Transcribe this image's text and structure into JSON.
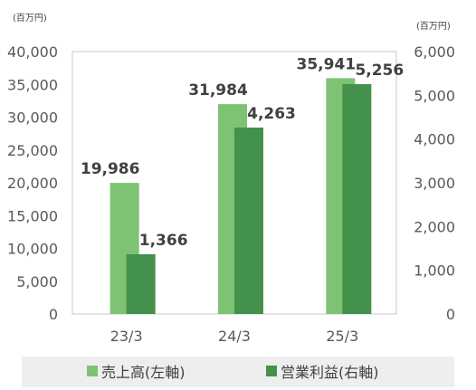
{
  "chart_data": {
    "type": "bar",
    "units": {
      "left": "(百万円)",
      "right": "(百万円)"
    },
    "categories": [
      "23/3",
      "24/3",
      "25/3"
    ],
    "left_axis": {
      "ticks": [
        "0",
        "5,000",
        "10,000",
        "15,000",
        "20,000",
        "25,000",
        "30,000",
        "35,000",
        "40,000"
      ],
      "ylim": [
        0,
        40000
      ]
    },
    "right_axis": {
      "ticks": [
        "0",
        "1,000",
        "2,000",
        "3,000",
        "4,000",
        "5,000",
        "6,000"
      ],
      "ylim": [
        0,
        6000
      ]
    },
    "series": [
      {
        "name": "売上高(左軸)",
        "axis": "left",
        "color": "#7DC373",
        "values": [
          19986,
          31984,
          35941
        ],
        "labels": [
          "19,986",
          "31,984",
          "35,941"
        ]
      },
      {
        "name": "営業利益(右軸)",
        "axis": "right",
        "color": "#43914A",
        "values": [
          1366,
          4263,
          5256
        ],
        "labels": [
          "1,366",
          "4,263",
          "5,256"
        ]
      }
    ],
    "grid": false,
    "legend_position": "bottom"
  }
}
